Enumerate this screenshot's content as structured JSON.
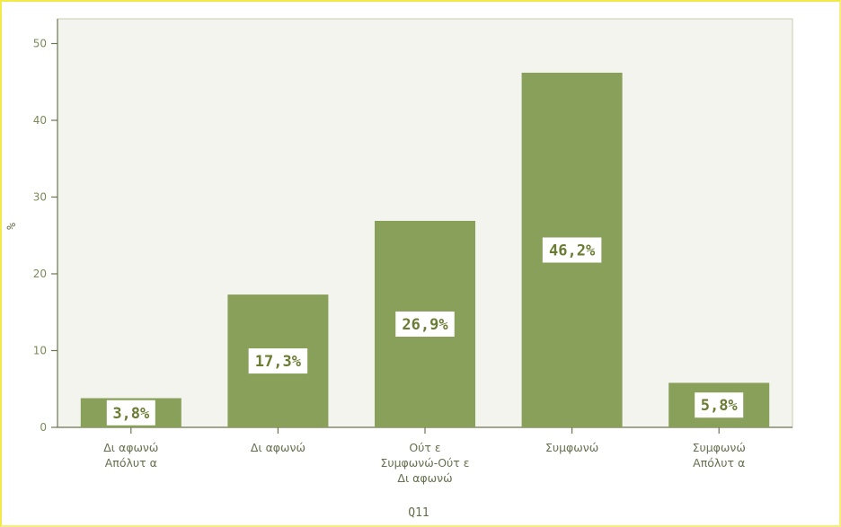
{
  "chart_data": {
    "type": "bar",
    "categories": [
      [
        "Δι αφωνώ",
        "Απόλυτ α"
      ],
      [
        "Δι αφωνώ"
      ],
      [
        "Ούτ ε",
        "Συμφωνώ-Ούτ ε",
        "Δι αφωνώ"
      ],
      [
        "Συμφωνώ"
      ],
      [
        "Συμφωνώ",
        "Απόλυτ α"
      ]
    ],
    "values": [
      3.8,
      17.3,
      26.9,
      46.2,
      5.8
    ],
    "data_labels": [
      "3,8%",
      "17,3%",
      "26,9%",
      "46,2%",
      "5,8%"
    ],
    "xlabel": "Q11",
    "ylabel": "%",
    "ylim": [
      0,
      50
    ],
    "yticks": [
      0,
      10,
      20,
      30,
      40,
      50
    ],
    "grid": false,
    "legend": "none",
    "colors": {
      "bar": "#89a05a",
      "plot_background": "#f3f4ee",
      "axis": "#6d7450",
      "page_border": "#f2e94a"
    }
  }
}
